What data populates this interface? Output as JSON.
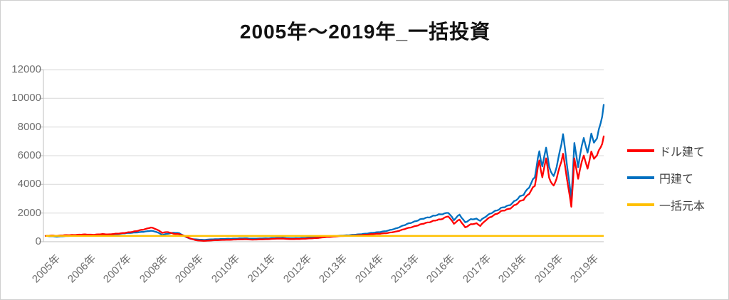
{
  "title": "2005年～2019年_一括投資",
  "legend": {
    "items": [
      {
        "label": "ドル建て",
        "color": "#FF0000"
      },
      {
        "label": "円建て",
        "color": "#0070C0"
      },
      {
        "label": "一括元本",
        "color": "#FFC000"
      }
    ]
  },
  "colors": {
    "series_red": "#FF0000",
    "series_blue": "#0070C0",
    "series_gold": "#FFC000",
    "gridline": "#D9D9D9",
    "axis": "#BFBFBF",
    "tick_text": "#6F6F6F",
    "legend_text": "#3F3F3F",
    "title_text": "#111111",
    "frame": "#CFCFCF"
  },
  "chart_data": {
    "type": "line",
    "title": "2005年～2019年_一括投資",
    "xlabel": "",
    "ylabel": "",
    "ylim": [
      0,
      12000
    ],
    "y_ticks": [
      0,
      2000,
      4000,
      6000,
      8000,
      10000,
      12000
    ],
    "y_tick_labels": [
      "0",
      "2000",
      "4000",
      "6000",
      "8000",
      "10000",
      "12000"
    ],
    "x_tick_labels": [
      "2005年",
      "2006年",
      "2007年",
      "2008年",
      "2009年",
      "2010年",
      "2011年",
      "2012年",
      "2013年",
      "2014年",
      "2015年",
      "2016年",
      "2017年",
      "2018年",
      "2019年",
      "2019年"
    ],
    "grid": "horizontal",
    "legend_position": "right",
    "x_unit": "decimal_year",
    "series": [
      {
        "name": "円建て",
        "color": "#0070C0",
        "points": [
          [
            2005.0,
            400
          ],
          [
            2005.15,
            375
          ],
          [
            2005.3,
            355
          ],
          [
            2005.5,
            385
          ],
          [
            2005.7,
            415
          ],
          [
            2005.9,
            445
          ],
          [
            2006.1,
            460
          ],
          [
            2006.3,
            435
          ],
          [
            2006.5,
            490
          ],
          [
            2006.7,
            475
          ],
          [
            2006.9,
            530
          ],
          [
            2007.1,
            590
          ],
          [
            2007.3,
            620
          ],
          [
            2007.5,
            670
          ],
          [
            2007.7,
            720
          ],
          [
            2007.8,
            770
          ],
          [
            2007.95,
            690
          ],
          [
            2008.1,
            470
          ],
          [
            2008.25,
            560
          ],
          [
            2008.4,
            630
          ],
          [
            2008.55,
            590
          ],
          [
            2008.7,
            380
          ],
          [
            2008.85,
            200
          ],
          [
            2009.0,
            160
          ],
          [
            2009.2,
            130
          ],
          [
            2009.35,
            155
          ],
          [
            2009.5,
            175
          ],
          [
            2009.7,
            195
          ],
          [
            2009.9,
            205
          ],
          [
            2010.1,
            225
          ],
          [
            2010.3,
            240
          ],
          [
            2010.5,
            210
          ],
          [
            2010.7,
            225
          ],
          [
            2010.9,
            240
          ],
          [
            2011.1,
            265
          ],
          [
            2011.3,
            280
          ],
          [
            2011.5,
            240
          ],
          [
            2011.7,
            250
          ],
          [
            2011.9,
            270
          ],
          [
            2012.1,
            300
          ],
          [
            2012.3,
            335
          ],
          [
            2012.5,
            375
          ],
          [
            2012.7,
            400
          ],
          [
            2012.9,
            430
          ],
          [
            2013.1,
            465
          ],
          [
            2013.3,
            505
          ],
          [
            2013.5,
            565
          ],
          [
            2013.7,
            620
          ],
          [
            2013.9,
            690
          ],
          [
            2014.1,
            770
          ],
          [
            2014.3,
            920
          ],
          [
            2014.5,
            1120
          ],
          [
            2014.7,
            1320
          ],
          [
            2014.9,
            1500
          ],
          [
            2015.1,
            1650
          ],
          [
            2015.3,
            1800
          ],
          [
            2015.5,
            1900
          ],
          [
            2015.7,
            2050
          ],
          [
            2015.85,
            1500
          ],
          [
            2016.0,
            1900
          ],
          [
            2016.15,
            1350
          ],
          [
            2016.3,
            1550
          ],
          [
            2016.45,
            1600
          ],
          [
            2016.55,
            1480
          ],
          [
            2016.7,
            1750
          ],
          [
            2016.9,
            2100
          ],
          [
            2017.1,
            2320
          ],
          [
            2017.3,
            2520
          ],
          [
            2017.5,
            2900
          ],
          [
            2017.7,
            3300
          ],
          [
            2017.85,
            3850
          ],
          [
            2018.0,
            4500
          ],
          [
            2018.12,
            6350
          ],
          [
            2018.2,
            5240
          ],
          [
            2018.3,
            6650
          ],
          [
            2018.38,
            5140
          ],
          [
            2018.5,
            4540
          ],
          [
            2018.62,
            5700
          ],
          [
            2018.75,
            7400
          ],
          [
            2018.85,
            5500
          ],
          [
            2018.97,
            3020
          ],
          [
            2019.05,
            6750
          ],
          [
            2019.15,
            5240
          ],
          [
            2019.3,
            7400
          ],
          [
            2019.4,
            6150
          ],
          [
            2019.5,
            7550
          ],
          [
            2019.57,
            6750
          ],
          [
            2019.65,
            7300
          ],
          [
            2019.75,
            8300
          ],
          [
            2019.83,
            9550
          ]
        ]
      },
      {
        "name": "ドル建て",
        "color": "#FF0000",
        "points": [
          [
            2005.0,
            400
          ],
          [
            2005.15,
            430
          ],
          [
            2005.3,
            415
          ],
          [
            2005.5,
            450
          ],
          [
            2005.7,
            470
          ],
          [
            2005.9,
            490
          ],
          [
            2006.1,
            505
          ],
          [
            2006.3,
            485
          ],
          [
            2006.5,
            530
          ],
          [
            2006.7,
            515
          ],
          [
            2006.9,
            560
          ],
          [
            2007.1,
            620
          ],
          [
            2007.3,
            680
          ],
          [
            2007.5,
            800
          ],
          [
            2007.7,
            900
          ],
          [
            2007.8,
            1000
          ],
          [
            2007.95,
            870
          ],
          [
            2008.1,
            620
          ],
          [
            2008.25,
            680
          ],
          [
            2008.4,
            560
          ],
          [
            2008.55,
            520
          ],
          [
            2008.7,
            400
          ],
          [
            2008.85,
            220
          ],
          [
            2009.0,
            100
          ],
          [
            2009.2,
            60
          ],
          [
            2009.35,
            85
          ],
          [
            2009.5,
            105
          ],
          [
            2009.7,
            125
          ],
          [
            2009.9,
            135
          ],
          [
            2010.1,
            155
          ],
          [
            2010.3,
            170
          ],
          [
            2010.5,
            145
          ],
          [
            2010.7,
            160
          ],
          [
            2010.9,
            175
          ],
          [
            2011.1,
            205
          ],
          [
            2011.3,
            220
          ],
          [
            2011.5,
            180
          ],
          [
            2011.7,
            190
          ],
          [
            2011.9,
            210
          ],
          [
            2012.1,
            240
          ],
          [
            2012.3,
            280
          ],
          [
            2012.5,
            330
          ],
          [
            2012.7,
            365
          ],
          [
            2012.9,
            400
          ],
          [
            2013.1,
            420
          ],
          [
            2013.3,
            440
          ],
          [
            2013.5,
            490
          ],
          [
            2013.7,
            530
          ],
          [
            2013.9,
            570
          ],
          [
            2014.1,
            610
          ],
          [
            2014.3,
            700
          ],
          [
            2014.5,
            850
          ],
          [
            2014.7,
            1000
          ],
          [
            2014.9,
            1150
          ],
          [
            2015.1,
            1300
          ],
          [
            2015.3,
            1450
          ],
          [
            2015.5,
            1550
          ],
          [
            2015.7,
            1800
          ],
          [
            2015.85,
            1250
          ],
          [
            2016.0,
            1550
          ],
          [
            2016.15,
            1000
          ],
          [
            2016.3,
            1200
          ],
          [
            2016.45,
            1280
          ],
          [
            2016.55,
            1120
          ],
          [
            2016.7,
            1500
          ],
          [
            2016.9,
            1850
          ],
          [
            2017.1,
            2100
          ],
          [
            2017.3,
            2280
          ],
          [
            2017.5,
            2600
          ],
          [
            2017.7,
            2950
          ],
          [
            2017.85,
            3400
          ],
          [
            2018.0,
            3900
          ],
          [
            2018.12,
            5700
          ],
          [
            2018.2,
            4480
          ],
          [
            2018.3,
            5900
          ],
          [
            2018.38,
            4380
          ],
          [
            2018.5,
            3880
          ],
          [
            2018.62,
            4800
          ],
          [
            2018.75,
            6050
          ],
          [
            2018.85,
            4500
          ],
          [
            2018.97,
            2470
          ],
          [
            2019.05,
            5700
          ],
          [
            2019.15,
            4420
          ],
          [
            2019.3,
            6150
          ],
          [
            2019.4,
            5040
          ],
          [
            2019.5,
            6300
          ],
          [
            2019.57,
            5650
          ],
          [
            2019.65,
            6100
          ],
          [
            2019.75,
            6600
          ],
          [
            2019.83,
            7350
          ]
        ]
      },
      {
        "name": "一括元本",
        "color": "#FFC000",
        "constant": 400
      }
    ]
  }
}
